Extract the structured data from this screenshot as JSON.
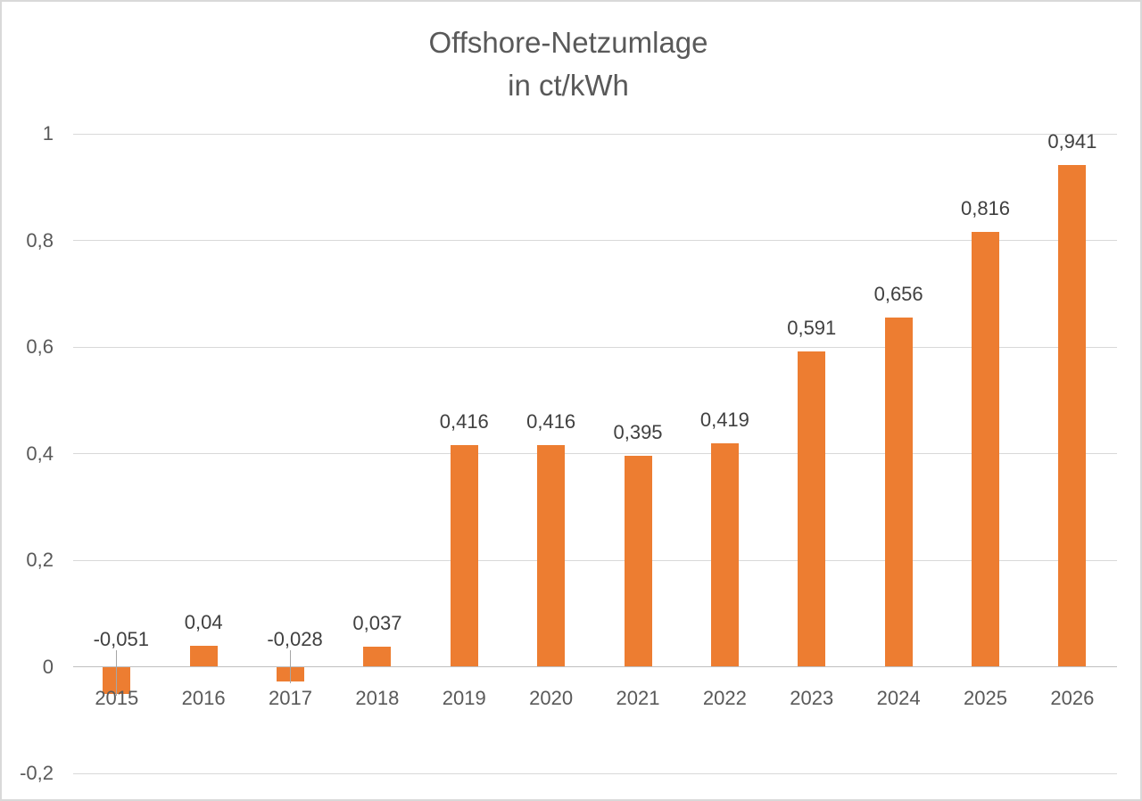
{
  "chart_data": {
    "type": "bar",
    "title": "Offshore-Netzumlage",
    "subtitle": "in ct/kWh",
    "categories": [
      "2015",
      "2016",
      "2017",
      "2018",
      "2019",
      "2020",
      "2021",
      "2022",
      "2023",
      "2024",
      "2025",
      "2026"
    ],
    "values": [
      -0.051,
      0.04,
      -0.028,
      0.037,
      0.416,
      0.416,
      0.395,
      0.419,
      0.591,
      0.656,
      0.816,
      0.941
    ],
    "value_labels": [
      "-0,051",
      "0,04",
      "-0,028",
      "0,037",
      "0,416",
      "0,416",
      "0,395",
      "0,419",
      "0,591",
      "0,656",
      "0,816",
      "0,941"
    ],
    "y_tick_labels": [
      "1",
      "0,8",
      "0,6",
      "0,4",
      "0,2",
      "0",
      "-0,2"
    ],
    "y_tick_values": [
      1,
      0.8,
      0.6,
      0.4,
      0.2,
      0,
      -0.2
    ],
    "ylim": [
      -0.2,
      1.0
    ],
    "xlabel": "",
    "ylabel": "",
    "grid": true,
    "legend": "none",
    "bar_color": "#ED7D31",
    "grid_color": "#D9D9D9",
    "axis_line_color": "#BFBFBF",
    "title_color": "#595959",
    "tick_text_color": "#595959",
    "data_label_color": "#404040",
    "leader_line_color": "#A6A6A6"
  }
}
